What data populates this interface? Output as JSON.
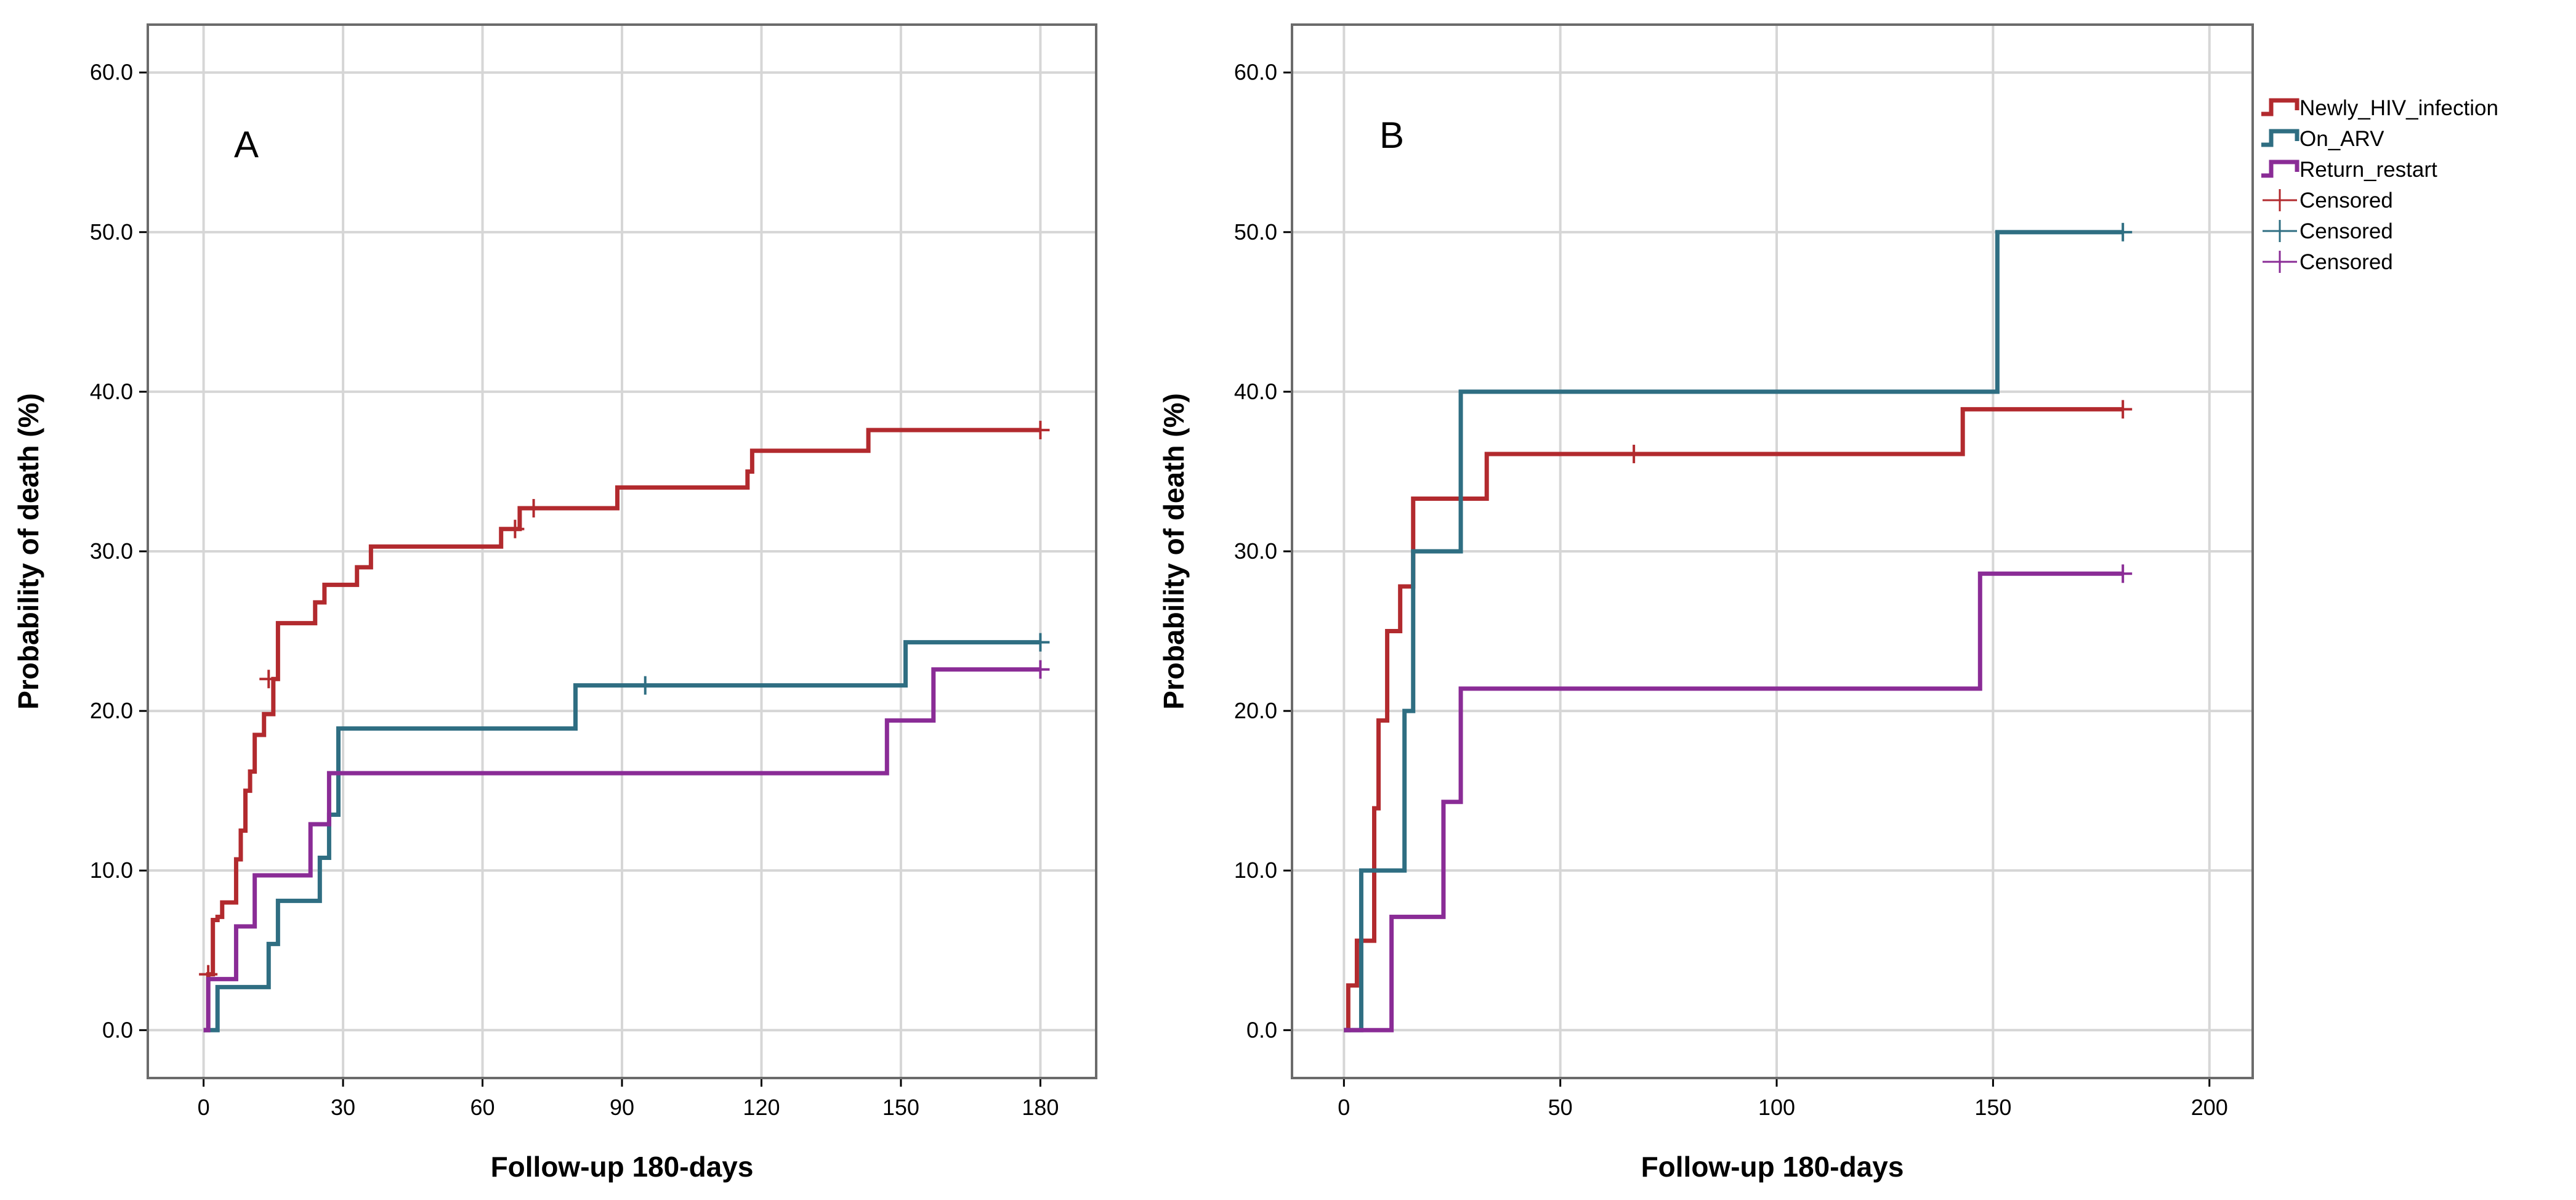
{
  "colors": {
    "newly_hiv": "#b22a2e",
    "on_arv": "#2f6e82",
    "return_restart": "#8a2c96",
    "grid": "#d6d6d6"
  },
  "legend": {
    "entries": [
      {
        "label": "Newly_HIV_infection",
        "kind": "line",
        "series": "newly"
      },
      {
        "label": "On_ARV",
        "kind": "line",
        "series": "arv"
      },
      {
        "label": "Return_restart",
        "kind": "line",
        "series": "restart"
      },
      {
        "label": "Censored",
        "kind": "censor",
        "series": "newly"
      },
      {
        "label": "Censored",
        "kind": "censor",
        "series": "arv"
      },
      {
        "label": "Censored",
        "kind": "censor",
        "series": "restart"
      }
    ]
  },
  "chart_data": [
    {
      "type": "line",
      "subtype": "step (Kaplan-Meier cumulative incidence)",
      "panel_label": "A",
      "xlabel": "Follow-up 180-days",
      "ylabel": "Probability of death (%)",
      "xlim": [
        -12,
        192
      ],
      "ylim": [
        -3,
        63
      ],
      "xticks": [
        0,
        30,
        60,
        90,
        120,
        150,
        180
      ],
      "xtick_labels": [
        "0",
        "30",
        "60",
        "90",
        "120",
        "150",
        "180"
      ],
      "yticks": [
        0,
        10,
        20,
        30,
        40,
        50,
        60
      ],
      "ytick_labels": [
        "0.0",
        "10.0",
        "20.0",
        "30.0",
        "40.0",
        "50.0",
        "60.0"
      ],
      "grid": true,
      "series": [
        {
          "name": "Newly_HIV_infection",
          "key": "newly",
          "steps": [
            [
              0,
              0
            ],
            [
              1,
              3.5
            ],
            [
              2,
              6.9
            ],
            [
              3,
              7.1
            ],
            [
              4,
              8.0
            ],
            [
              7,
              10.7
            ],
            [
              8,
              12.5
            ],
            [
              9,
              15.0
            ],
            [
              10,
              16.2
            ],
            [
              11,
              18.5
            ],
            [
              13,
              19.8
            ],
            [
              15,
              22.0
            ],
            [
              16,
              25.5
            ],
            [
              24,
              26.8
            ],
            [
              26,
              27.9
            ],
            [
              33,
              29.0
            ],
            [
              36,
              30.3
            ],
            [
              64,
              31.4
            ],
            [
              68,
              32.7
            ],
            [
              89,
              34.0
            ],
            [
              117,
              35.0
            ],
            [
              118,
              36.3
            ],
            [
              143,
              37.6
            ],
            [
              180,
              37.6
            ]
          ],
          "censored": [
            [
              1,
              3.5
            ],
            [
              14,
              22.0
            ],
            [
              67,
              31.4
            ],
            [
              71,
              32.7
            ],
            [
              180,
              37.6
            ]
          ]
        },
        {
          "name": "On_ARV",
          "key": "arv",
          "steps": [
            [
              0,
              0
            ],
            [
              3,
              2.7
            ],
            [
              14,
              5.4
            ],
            [
              16,
              8.1
            ],
            [
              25,
              10.8
            ],
            [
              27,
              13.5
            ],
            [
              29,
              18.9
            ],
            [
              80,
              21.6
            ],
            [
              151,
              24.3
            ],
            [
              180,
              24.3
            ]
          ],
          "censored": [
            [
              95,
              21.6
            ],
            [
              180,
              24.3
            ]
          ]
        },
        {
          "name": "Return_restart",
          "key": "restart",
          "steps": [
            [
              0,
              0
            ],
            [
              1,
              3.2
            ],
            [
              7,
              6.5
            ],
            [
              11,
              9.7
            ],
            [
              23,
              12.9
            ],
            [
              27,
              16.1
            ],
            [
              147,
              19.4
            ],
            [
              157,
              22.6
            ],
            [
              180,
              22.6
            ]
          ],
          "censored": [
            [
              180,
              22.6
            ]
          ]
        }
      ]
    },
    {
      "type": "line",
      "subtype": "step (Kaplan-Meier cumulative incidence)",
      "panel_label": "B",
      "xlabel": "Follow-up 180-days",
      "ylabel": "Probability of death (%)",
      "xlim": [
        -12,
        210
      ],
      "ylim": [
        -3,
        63
      ],
      "xticks": [
        0,
        50,
        100,
        150,
        200
      ],
      "xtick_labels": [
        "0",
        "50",
        "100",
        "150",
        "200"
      ],
      "yticks": [
        0,
        10,
        20,
        30,
        40,
        50,
        60
      ],
      "ytick_labels": [
        "0.0",
        "10.0",
        "20.0",
        "30.0",
        "40.0",
        "50.0",
        "60.0"
      ],
      "grid": true,
      "series": [
        {
          "name": "Newly_HIV_infection",
          "key": "newly",
          "steps": [
            [
              0,
              0
            ],
            [
              1,
              2.8
            ],
            [
              3,
              5.6
            ],
            [
              7,
              13.9
            ],
            [
              8,
              19.4
            ],
            [
              10,
              25.0
            ],
            [
              13,
              27.8
            ],
            [
              16,
              33.3
            ],
            [
              33,
              36.1
            ],
            [
              143,
              38.9
            ],
            [
              180,
              38.9
            ]
          ],
          "censored": [
            [
              67,
              36.1
            ],
            [
              180,
              38.9
            ]
          ]
        },
        {
          "name": "On_ARV",
          "key": "arv",
          "steps": [
            [
              0,
              0
            ],
            [
              4,
              10.0
            ],
            [
              14,
              20.0
            ],
            [
              16,
              30.0
            ],
            [
              27,
              40.0
            ],
            [
              151,
              50.0
            ],
            [
              180,
              50.0
            ]
          ],
          "censored": [
            [
              180,
              50.0
            ]
          ]
        },
        {
          "name": "Return_restart",
          "key": "restart",
          "steps": [
            [
              0,
              0
            ],
            [
              11,
              7.1
            ],
            [
              23,
              14.3
            ],
            [
              27,
              21.4
            ],
            [
              147,
              28.6
            ],
            [
              180,
              28.6
            ]
          ],
          "censored": [
            [
              180,
              28.6
            ]
          ]
        }
      ]
    }
  ]
}
